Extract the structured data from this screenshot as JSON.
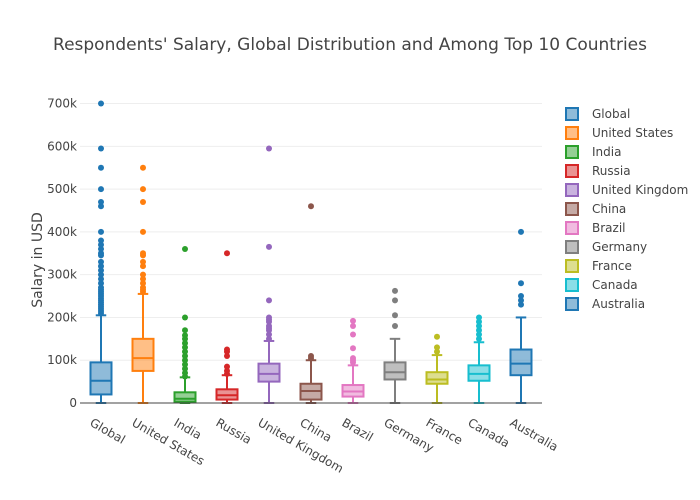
{
  "chart_data": {
    "type": "box",
    "title": "Respondents' Salary, Global Distribution and Among Top 10 Countries",
    "xlabel": "",
    "ylabel": "Salary in USD",
    "ylim": [
      0,
      720000
    ],
    "yticks": [
      {
        "value": 0,
        "label": "0"
      },
      {
        "value": 100000,
        "label": "100k"
      },
      {
        "value": 200000,
        "label": "200k"
      },
      {
        "value": 300000,
        "label": "300k"
      },
      {
        "value": 400000,
        "label": "400k"
      },
      {
        "value": 500000,
        "label": "500k"
      },
      {
        "value": 600000,
        "label": "600k"
      },
      {
        "value": 700000,
        "label": "700k"
      }
    ],
    "grid": true,
    "legend_position": "right",
    "categories": [
      "Global",
      "United States",
      "India",
      "Russia",
      "United Kingdom",
      "China",
      "Brazil",
      "Germany",
      "France",
      "Canada",
      "Australia"
    ],
    "series": [
      {
        "name": "Global",
        "color": "#1f77b4",
        "min": 0,
        "q1": 20000,
        "median": 52000,
        "q3": 95000,
        "max": 205000,
        "outliers": [
          210000,
          215000,
          220000,
          225000,
          230000,
          235000,
          240000,
          245000,
          250000,
          255000,
          260000,
          265000,
          270000,
          280000,
          290000,
          300000,
          310000,
          320000,
          330000,
          345000,
          350000,
          360000,
          370000,
          380000,
          400000,
          460000,
          470000,
          500000,
          550000,
          595000,
          700000
        ]
      },
      {
        "name": "United States",
        "color": "#ff7f0e",
        "min": 0,
        "q1": 75000,
        "median": 105000,
        "q3": 150000,
        "max": 255000,
        "outliers": [
          260000,
          265000,
          270000,
          280000,
          290000,
          300000,
          320000,
          330000,
          345000,
          350000,
          400000,
          470000,
          500000,
          550000
        ]
      },
      {
        "name": "India",
        "color": "#2ca02c",
        "min": 0,
        "q1": 3000,
        "median": 10000,
        "q3": 25000,
        "max": 60000,
        "outliers": [
          62000,
          70000,
          80000,
          90000,
          100000,
          110000,
          120000,
          130000,
          140000,
          150000,
          158000,
          170000,
          200000,
          360000
        ]
      },
      {
        "name": "Russia",
        "color": "#d62728",
        "min": 0,
        "q1": 8000,
        "median": 18000,
        "q3": 32000,
        "max": 65000,
        "outliers": [
          68000,
          75000,
          85000,
          110000,
          120000,
          125000,
          350000
        ]
      },
      {
        "name": "United Kingdom",
        "color": "#9467bd",
        "min": 0,
        "q1": 50000,
        "median": 68000,
        "q3": 92000,
        "max": 145000,
        "outliers": [
          150000,
          160000,
          170000,
          175000,
          180000,
          190000,
          195000,
          200000,
          240000,
          365000,
          595000
        ]
      },
      {
        "name": "China",
        "color": "#8c564b",
        "min": 0,
        "q1": 8000,
        "median": 28000,
        "q3": 45000,
        "max": 100000,
        "outliers": [
          105000,
          110000,
          460000
        ]
      },
      {
        "name": "Brazil",
        "color": "#e377c2",
        "min": 0,
        "q1": 15000,
        "median": 27000,
        "q3": 42000,
        "max": 88000,
        "outliers": [
          95000,
          100000,
          105000,
          128000,
          160000,
          180000,
          192000
        ]
      },
      {
        "name": "Germany",
        "color": "#7f7f7f",
        "min": 0,
        "q1": 55000,
        "median": 72000,
        "q3": 95000,
        "max": 150000,
        "outliers": [
          180000,
          205000,
          240000,
          262000
        ]
      },
      {
        "name": "France",
        "color": "#bcbd22",
        "min": 0,
        "q1": 45000,
        "median": 55000,
        "q3": 72000,
        "max": 112000,
        "outliers": [
          120000,
          130000,
          155000
        ]
      },
      {
        "name": "Canada",
        "color": "#17becf",
        "min": 0,
        "q1": 52000,
        "median": 68000,
        "q3": 88000,
        "max": 142000,
        "outliers": [
          150000,
          160000,
          170000,
          180000,
          190000,
          200000
        ]
      },
      {
        "name": "Australia",
        "color": "#1f77b4",
        "min": 0,
        "q1": 65000,
        "median": 92000,
        "q3": 125000,
        "max": 200000,
        "outliers": [
          230000,
          240000,
          250000,
          280000,
          400000
        ]
      }
    ]
  }
}
